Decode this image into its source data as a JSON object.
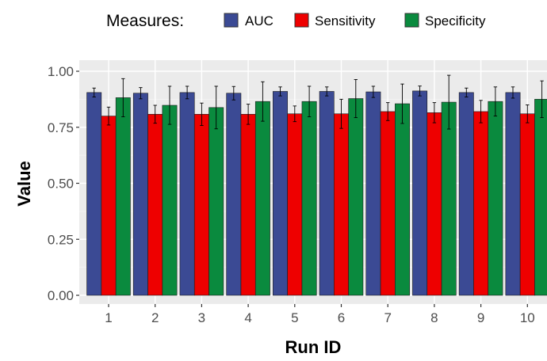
{
  "chart_data": {
    "type": "bar",
    "title": "",
    "xlabel": "Run ID",
    "ylabel": "Value",
    "categories": [
      "1",
      "2",
      "3",
      "4",
      "5",
      "6",
      "7",
      "8",
      "9",
      "10"
    ],
    "ylim": [
      0,
      1.0
    ],
    "yticks": [
      "0.00",
      "0.25",
      "0.50",
      "0.75",
      "1.00"
    ],
    "ytick_values": [
      0,
      0.25,
      0.5,
      0.75,
      1.0
    ],
    "grid": true,
    "legend": {
      "title": "Measures:",
      "position": "top"
    },
    "series": [
      {
        "name": "AUC",
        "color": "#3b4a94",
        "values": [
          0.905,
          0.902,
          0.905,
          0.902,
          0.91,
          0.91,
          0.908,
          0.912,
          0.905,
          0.905
        ],
        "error": [
          0.02,
          0.025,
          0.028,
          0.03,
          0.02,
          0.02,
          0.025,
          0.022,
          0.02,
          0.025
        ]
      },
      {
        "name": "Sensitivity",
        "color": "#ee0000",
        "values": [
          0.8,
          0.808,
          0.808,
          0.808,
          0.81,
          0.81,
          0.82,
          0.815,
          0.82,
          0.81
        ],
        "error": [
          0.04,
          0.04,
          0.05,
          0.045,
          0.035,
          0.065,
          0.04,
          0.045,
          0.05,
          0.04
        ]
      },
      {
        "name": "Specificity",
        "color": "#0a8a3e",
        "values": [
          0.882,
          0.848,
          0.838,
          0.865,
          0.865,
          0.878,
          0.855,
          0.862,
          0.865,
          0.875
        ],
        "error": [
          0.085,
          0.085,
          0.095,
          0.088,
          0.068,
          0.085,
          0.088,
          0.12,
          0.065,
          0.082
        ]
      }
    ]
  }
}
